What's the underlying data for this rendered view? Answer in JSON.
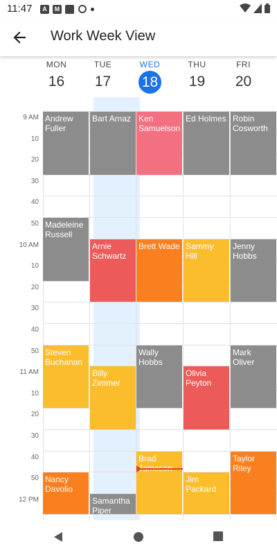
{
  "status": {
    "time": "11:47"
  },
  "header": {
    "title": "Work Week View"
  },
  "days": [
    {
      "name": "MON",
      "num": "16"
    },
    {
      "name": "TUE",
      "num": "17"
    },
    {
      "name": "WED",
      "num": "18"
    },
    {
      "name": "THU",
      "num": "19"
    },
    {
      "name": "FRI",
      "num": "20"
    }
  ],
  "time_labels": [
    "9 AM",
    "10",
    "20",
    "30",
    "40",
    "50",
    "10 AM",
    "10",
    "20",
    "30",
    "40",
    "50",
    "11 AM",
    "10",
    "20",
    "30",
    "40",
    "50",
    "12 PM"
  ],
  "events": [
    {
      "day": "MON",
      "start": "9:00",
      "end": "9:30",
      "title": "Andrew Fuller",
      "color": "#8c8c8c"
    },
    {
      "day": "MON",
      "start": "9:50",
      "end": "10:20",
      "title": "Madeleine Russell",
      "color": "#8c8c8c"
    },
    {
      "day": "MON",
      "start": "10:50",
      "end": "11:20",
      "title": "Steven Buchanan",
      "color": "#fbbd2c"
    },
    {
      "day": "MON",
      "start": "11:50",
      "end": "12:10",
      "title": "Nancy Davolio",
      "color": "#fa7f1e"
    },
    {
      "day": "TUE",
      "start": "9:00",
      "end": "9:30",
      "title": "Bart Arnaz",
      "color": "#8c8c8c"
    },
    {
      "day": "TUE",
      "start": "10:00",
      "end": "10:30",
      "title": "Arnie Schwartz",
      "color": "#ec5a5a"
    },
    {
      "day": "TUE",
      "start": "11:00",
      "end": "11:30",
      "title": "Billy Zimmer",
      "color": "#fbbd2c"
    },
    {
      "day": "TUE",
      "start": "12:00",
      "end": "12:10",
      "title": "Samantha Piper",
      "color": "#8c8c8c"
    },
    {
      "day": "WED",
      "start": "9:00",
      "end": "9:30",
      "title": "Ken Samuelson",
      "color": "#f2707f"
    },
    {
      "day": "WED",
      "start": "10:00",
      "end": "10:30",
      "title": "Brett Wade",
      "color": "#fa7f1e"
    },
    {
      "day": "WED",
      "start": "10:50",
      "end": "11:20",
      "title": "Wally Hobbs",
      "color": "#8c8c8c"
    },
    {
      "day": "WED",
      "start": "11:40",
      "end": "12:10",
      "title": "Brad Jameson",
      "color": "#fbbd2c"
    },
    {
      "day": "THU",
      "start": "9:00",
      "end": "9:30",
      "title": "Ed Holmes",
      "color": "#8c8c8c"
    },
    {
      "day": "THU",
      "start": "10:00",
      "end": "10:30",
      "title": "Sammy Hill",
      "color": "#fbbd2c"
    },
    {
      "day": "THU",
      "start": "11:00",
      "end": "11:30",
      "title": "Olivia Peyton",
      "color": "#ec5a5a"
    },
    {
      "day": "THU",
      "start": "11:50",
      "end": "12:10",
      "title": "Jim Packard",
      "color": "#fbbd2c"
    },
    {
      "day": "FRI",
      "start": "9:00",
      "end": "9:30",
      "title": "Robin Cosworth",
      "color": "#8c8c8c"
    },
    {
      "day": "FRI",
      "start": "10:00",
      "end": "10:30",
      "title": "Jenny Hobbs",
      "color": "#8c8c8c"
    },
    {
      "day": "FRI",
      "start": "10:50",
      "end": "11:20",
      "title": "Mark Oliver",
      "color": "#8c8c8c"
    },
    {
      "day": "FRI",
      "start": "11:40",
      "end": "12:10",
      "title": "Taylor Riley",
      "color": "#fa7f1e"
    }
  ],
  "colors": {
    "accent": "#1a73e8",
    "today_column": "#e3f0fd",
    "now_indicator": "#e53935"
  }
}
